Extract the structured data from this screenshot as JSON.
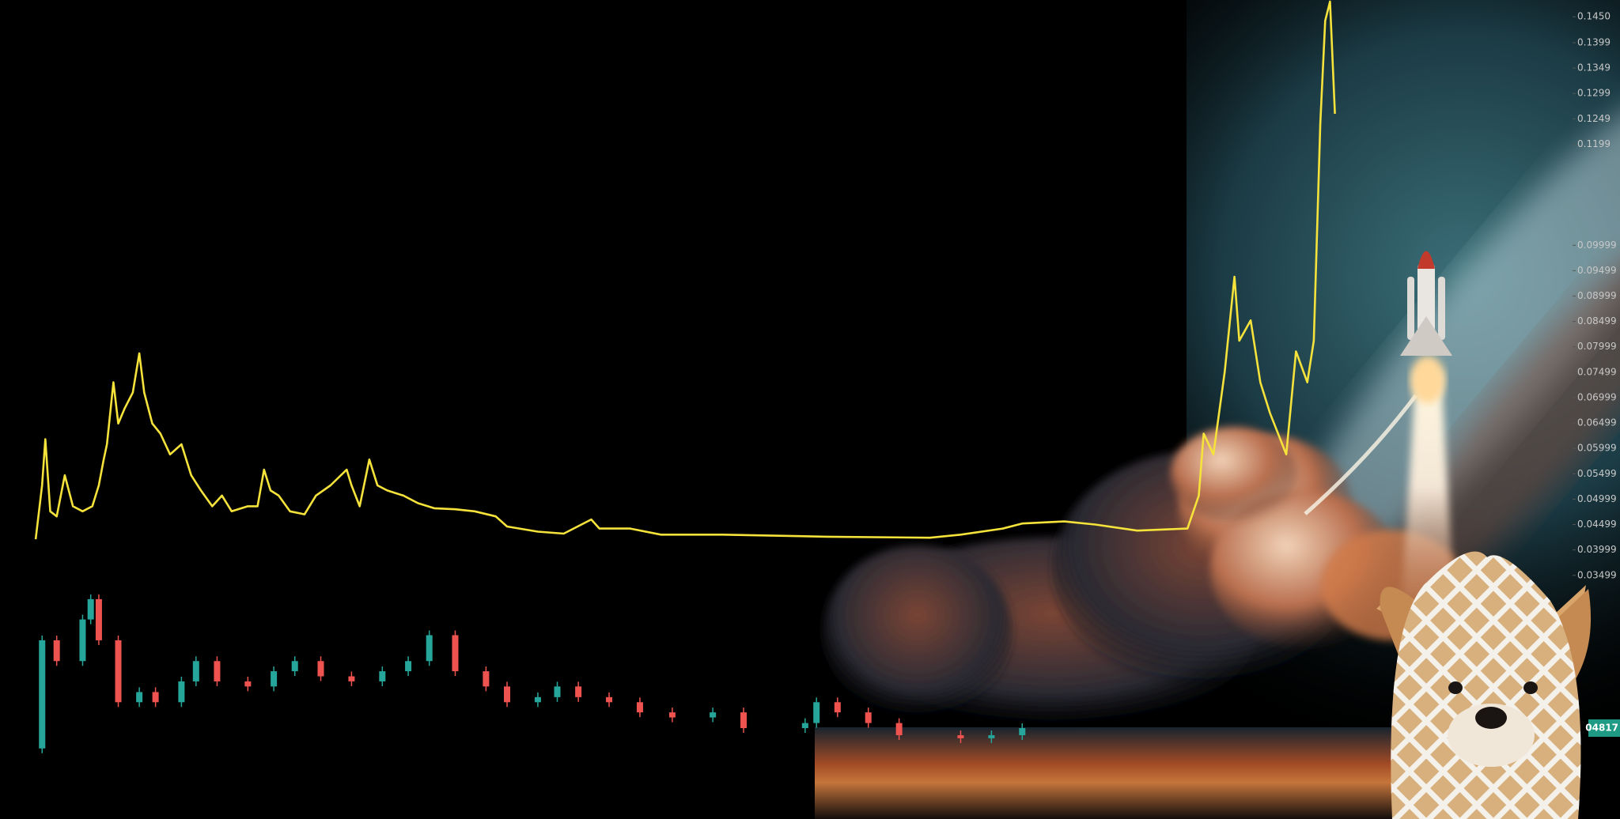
{
  "chart_data": [
    {
      "type": "line",
      "xlim": [
        0,
        100
      ],
      "ylim": [
        -0.013,
        0.1483
      ],
      "yticks": [
        {
          "value": 0.145,
          "label": "0.1450"
        },
        0.1399,
        0.1349,
        0.1299,
        0.1249,
        0.1199,
        0.09999,
        0.09499,
        0.08999,
        0.08499,
        0.07999,
        0.07499,
        0.06999,
        0.06499,
        0.05999,
        0.05499,
        0.04999,
        0.04499,
        0.03999,
        0.03499
      ],
      "price_tag": "04817",
      "series": [
        {
          "color": "#f5e33b",
          "x": [
            2.2,
            2.6,
            2.8,
            3.1,
            3.5,
            4.0,
            4.5,
            5.1,
            5.7,
            6.1,
            6.4,
            6.6,
            7.0,
            7.3,
            7.7,
            8.2,
            8.6,
            8.9,
            9.4,
            9.9,
            10.5,
            11.2,
            11.8,
            12.4,
            13.1,
            13.7,
            14.3,
            15.3,
            15.9,
            16.3,
            16.7,
            17.2,
            17.9,
            18.8,
            19.5,
            20.4,
            21.4,
            21.7,
            22.2,
            22.8,
            23.3,
            23.9,
            24.9,
            25.8,
            26.8,
            28.1,
            29.3,
            30.6,
            31.3,
            33.2,
            34.8,
            36.5,
            37.0,
            38.9,
            40.8,
            44.6,
            51.0,
            57.4,
            59.3,
            61.9,
            63.1,
            65.7,
            67.6,
            70.2,
            73.3,
            74.0,
            74.3,
            74.9,
            75.6,
            76.2,
            76.5,
            77.2,
            77.8,
            78.4,
            79.4,
            80.0,
            80.7,
            81.1,
            81.5,
            81.8,
            82.1,
            82.4
          ],
          "values": [
            0.0421,
            0.0527,
            0.0618,
            0.0476,
            0.0466,
            0.0547,
            0.0486,
            0.0476,
            0.0486,
            0.0527,
            0.0578,
            0.0608,
            0.073,
            0.0649,
            0.0679,
            0.071,
            0.0787,
            0.071,
            0.0649,
            0.0629,
            0.0588,
            0.0608,
            0.0547,
            0.0517,
            0.0486,
            0.0507,
            0.0476,
            0.0486,
            0.0486,
            0.0558,
            0.0517,
            0.0507,
            0.0476,
            0.047,
            0.0507,
            0.0527,
            0.0558,
            0.0527,
            0.0486,
            0.0578,
            0.0527,
            0.0517,
            0.0507,
            0.0492,
            0.0482,
            0.048,
            0.0476,
            0.0466,
            0.0446,
            0.0436,
            0.0432,
            0.046,
            0.0442,
            0.0442,
            0.043,
            0.043,
            0.0426,
            0.0424,
            0.043,
            0.0442,
            0.0452,
            0.0456,
            0.045,
            0.0438,
            0.0442,
            0.0507,
            0.0629,
            0.0588,
            0.0751,
            0.0938,
            0.0812,
            0.0852,
            0.073,
            0.0669,
            0.0588,
            0.0791,
            0.073,
            0.0812,
            0.1239,
            0.1442,
            0.148,
            0.1259
          ]
        }
      ]
    },
    {
      "type": "candlestick",
      "xlim": [
        0,
        100
      ],
      "ylim": [
        -0.013,
        0.1483
      ],
      "up_color": "#26a69a",
      "down_color": "#ef5350",
      "x": [
        2.6,
        3.5,
        5.1,
        5.6,
        6.1,
        7.3,
        8.6,
        9.6,
        11.2,
        12.1,
        13.4,
        15.3,
        16.9,
        18.2,
        19.8,
        21.7,
        23.6,
        25.2,
        26.5,
        28.1,
        30.0,
        31.3,
        33.2,
        34.4,
        35.7,
        37.6,
        39.5,
        41.5,
        44.0,
        45.9,
        49.7,
        50.4,
        51.7,
        53.6,
        55.5,
        59.3,
        61.2,
        63.1
      ],
      "open": [
        0.0009,
        0.0222,
        0.0181,
        0.0263,
        0.0303,
        0.0222,
        0.01,
        0.012,
        0.01,
        0.0141,
        0.0181,
        0.0141,
        0.0131,
        0.0161,
        0.0181,
        0.0151,
        0.0141,
        0.0161,
        0.0181,
        0.0232,
        0.0161,
        0.0131,
        0.01,
        0.011,
        0.0131,
        0.011,
        0.01,
        0.008,
        0.007,
        0.008,
        0.0049,
        0.0059,
        0.01,
        0.008,
        0.0059,
        0.0035,
        0.0029,
        0.0035
      ],
      "close": [
        0.0222,
        0.0181,
        0.0263,
        0.0303,
        0.0222,
        0.01,
        0.012,
        0.01,
        0.0141,
        0.0181,
        0.0141,
        0.0131,
        0.0161,
        0.0181,
        0.0151,
        0.0141,
        0.0161,
        0.0181,
        0.0232,
        0.0161,
        0.0131,
        0.01,
        0.011,
        0.0131,
        0.011,
        0.01,
        0.008,
        0.007,
        0.008,
        0.0049,
        0.0059,
        0.01,
        0.008,
        0.0059,
        0.0035,
        0.0029,
        0.0035,
        0.0049
      ]
    }
  ]
}
